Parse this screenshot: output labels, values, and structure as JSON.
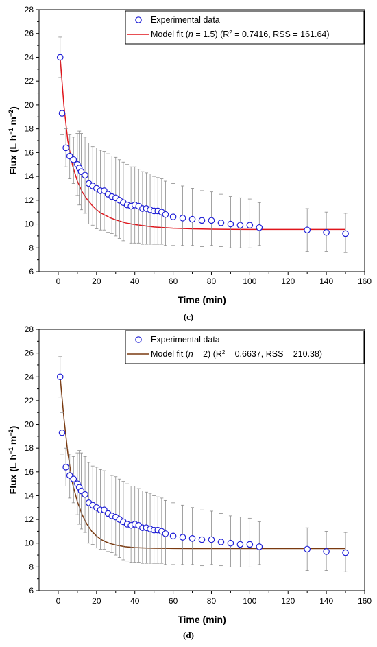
{
  "chart_data": [
    {
      "panel_label": "(c)",
      "type": "scatter",
      "xlabel": "Time (min)",
      "ylabel_parts": [
        "Flux (L h",
        "−1",
        " m",
        "−2",
        ")"
      ],
      "xlim": [
        -10,
        160
      ],
      "ylim": [
        6,
        28
      ],
      "xticks": [
        0,
        20,
        40,
        60,
        80,
        100,
        120,
        140,
        160
      ],
      "yticks": [
        6,
        8,
        10,
        12,
        14,
        16,
        18,
        20,
        22,
        24,
        26,
        28
      ],
      "grid": false,
      "legend_position": "top-right",
      "series": [
        {
          "name": "Experimental data",
          "kind": "markers",
          "marker": "open-circle",
          "color": "#1f1fd6",
          "x": [
            1,
            2,
            4,
            6,
            8,
            10,
            11,
            12,
            14,
            16,
            18,
            20,
            22,
            24,
            26,
            28,
            30,
            32,
            34,
            36,
            38,
            40,
            42,
            44,
            46,
            48,
            50,
            52,
            54,
            56,
            60,
            65,
            70,
            75,
            80,
            85,
            90,
            95,
            100,
            105,
            130,
            140,
            150
          ],
          "y": [
            24.0,
            19.3,
            16.4,
            15.7,
            15.4,
            15.0,
            14.7,
            14.4,
            14.1,
            13.4,
            13.2,
            13.0,
            12.8,
            12.8,
            12.5,
            12.3,
            12.2,
            12.0,
            11.8,
            11.6,
            11.5,
            11.6,
            11.5,
            11.3,
            11.3,
            11.2,
            11.1,
            11.1,
            11.0,
            10.8,
            10.6,
            10.5,
            10.4,
            10.3,
            10.3,
            10.1,
            10.0,
            9.9,
            9.9,
            9.7,
            9.5,
            9.3,
            9.2
          ],
          "error_upper": [
            25.7,
            21.0,
            18.0,
            17.5,
            17.3,
            17.6,
            17.8,
            17.6,
            17.3,
            16.8,
            16.5,
            16.4,
            16.2,
            16.1,
            15.9,
            15.7,
            15.6,
            15.4,
            15.2,
            15.0,
            14.8,
            14.8,
            14.6,
            14.4,
            14.3,
            14.2,
            14.0,
            13.9,
            13.8,
            13.6,
            13.4,
            13.2,
            13.0,
            12.8,
            12.7,
            12.5,
            12.3,
            12.2,
            12.1,
            11.8,
            11.3,
            11.0,
            10.9
          ],
          "error_lower": [
            22.3,
            17.5,
            14.8,
            13.8,
            13.4,
            12.4,
            11.6,
            11.2,
            10.9,
            10.0,
            9.9,
            9.6,
            9.5,
            9.5,
            9.3,
            9.2,
            9.0,
            8.8,
            8.6,
            8.5,
            8.4,
            8.4,
            8.4,
            8.3,
            8.3,
            8.3,
            8.3,
            8.3,
            8.3,
            8.2,
            8.2,
            8.2,
            8.2,
            8.1,
            8.2,
            8.1,
            8.0,
            8.0,
            8.0,
            8.2,
            7.7,
            7.7,
            7.6
          ]
        },
        {
          "name": "Model fit (n = 1.5) (R2 = 0.7416, RSS = 161.64)",
          "kind": "line",
          "color": "#e0151b",
          "x": [
            1,
            3,
            5,
            7.5,
            10,
            12.5,
            15,
            17.5,
            20,
            22.5,
            25,
            27.5,
            30,
            35,
            40,
            45,
            50,
            55,
            60,
            70,
            80,
            90,
            100,
            120,
            150
          ],
          "y": [
            24.0,
            19.9,
            17.0,
            14.9,
            13.6,
            12.7,
            12.1,
            11.6,
            11.2,
            10.9,
            10.7,
            10.5,
            10.35,
            10.1,
            9.95,
            9.85,
            9.75,
            9.7,
            9.65,
            9.6,
            9.57,
            9.56,
            9.55,
            9.55,
            9.55
          ]
        }
      ],
      "legend": {
        "items": [
          {
            "text": "Experimental data"
          },
          {
            "parts": [
              "Model fit (",
              "n",
              " = 1.5) (R",
              "2",
              " = 0.7416, RSS = 161.64)"
            ]
          }
        ]
      }
    },
    {
      "panel_label": "(d)",
      "type": "scatter",
      "xlabel": "Time (min)",
      "ylabel_parts": [
        "Flux (L h",
        "−1",
        " m",
        "−2",
        ")"
      ],
      "xlim": [
        -10,
        160
      ],
      "ylim": [
        6,
        28
      ],
      "xticks": [
        0,
        20,
        40,
        60,
        80,
        100,
        120,
        140,
        160
      ],
      "yticks": [
        6,
        8,
        10,
        12,
        14,
        16,
        18,
        20,
        22,
        24,
        26,
        28
      ],
      "grid": false,
      "legend_position": "top-right",
      "series": [
        {
          "name": "Experimental data",
          "kind": "markers",
          "marker": "open-circle",
          "color": "#1f1fd6",
          "x": [
            1,
            2,
            4,
            6,
            8,
            10,
            11,
            12,
            14,
            16,
            18,
            20,
            22,
            24,
            26,
            28,
            30,
            32,
            34,
            36,
            38,
            40,
            42,
            44,
            46,
            48,
            50,
            52,
            54,
            56,
            60,
            65,
            70,
            75,
            80,
            85,
            90,
            95,
            100,
            105,
            130,
            140,
            150
          ],
          "y": [
            24.0,
            19.3,
            16.4,
            15.7,
            15.4,
            15.0,
            14.7,
            14.4,
            14.1,
            13.4,
            13.2,
            13.0,
            12.8,
            12.8,
            12.5,
            12.3,
            12.2,
            12.0,
            11.8,
            11.6,
            11.5,
            11.6,
            11.5,
            11.3,
            11.3,
            11.2,
            11.1,
            11.1,
            11.0,
            10.8,
            10.6,
            10.5,
            10.4,
            10.3,
            10.3,
            10.1,
            10.0,
            9.9,
            9.9,
            9.7,
            9.5,
            9.3,
            9.2
          ],
          "error_upper": [
            25.7,
            21.0,
            18.0,
            17.5,
            17.3,
            17.6,
            17.8,
            17.6,
            17.3,
            16.8,
            16.5,
            16.4,
            16.2,
            16.1,
            15.9,
            15.7,
            15.6,
            15.4,
            15.2,
            15.0,
            14.8,
            14.8,
            14.6,
            14.4,
            14.3,
            14.2,
            14.0,
            13.9,
            13.8,
            13.6,
            13.4,
            13.2,
            13.0,
            12.8,
            12.7,
            12.5,
            12.3,
            12.2,
            12.1,
            11.8,
            11.3,
            11.0,
            10.9
          ],
          "error_lower": [
            22.3,
            17.5,
            14.8,
            13.8,
            13.4,
            12.4,
            11.6,
            11.2,
            10.9,
            10.0,
            9.9,
            9.6,
            9.5,
            9.5,
            9.3,
            9.2,
            9.0,
            8.8,
            8.6,
            8.5,
            8.4,
            8.4,
            8.4,
            8.3,
            8.3,
            8.3,
            8.3,
            8.3,
            8.3,
            8.2,
            8.2,
            8.2,
            8.2,
            8.1,
            8.2,
            8.1,
            8.0,
            8.0,
            8.0,
            8.2,
            7.7,
            7.7,
            7.6
          ]
        },
        {
          "name": "Model fit (n = 2) (R2 = 0.6637, RSS = 210.38)",
          "kind": "line",
          "color": "#7a3a10",
          "x": [
            1,
            3,
            5,
            7.5,
            10,
            12.5,
            15,
            17.5,
            20,
            22.5,
            25,
            27.5,
            30,
            35,
            40,
            45,
            50,
            55,
            60,
            70,
            80,
            90,
            100,
            120,
            150
          ],
          "y": [
            24.0,
            20.5,
            17.6,
            15.0,
            13.5,
            12.4,
            11.6,
            11.0,
            10.6,
            10.3,
            10.1,
            9.95,
            9.85,
            9.7,
            9.63,
            9.6,
            9.58,
            9.57,
            9.56,
            9.55,
            9.55,
            9.55,
            9.55,
            9.55,
            9.55
          ]
        }
      ],
      "legend": {
        "items": [
          {
            "text": "Experimental data"
          },
          {
            "parts": [
              "Model fit (",
              "n",
              " = 2) (R",
              "2",
              " = 0.6637, RSS = 210.38)"
            ]
          }
        ]
      }
    }
  ]
}
